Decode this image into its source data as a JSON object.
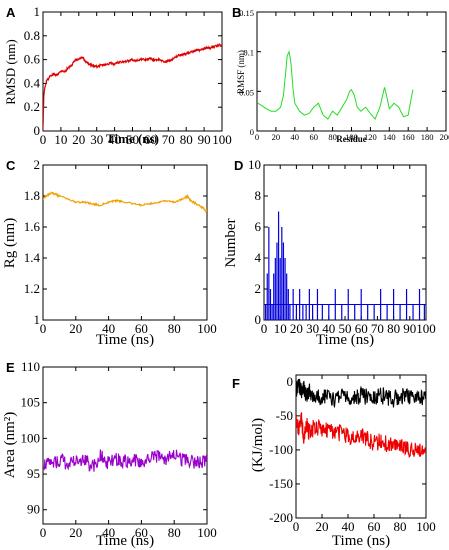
{
  "chart_data": [
    {
      "id": "A",
      "panel_label": "A",
      "type": "line",
      "xlabel": "Time (ns)",
      "ylabel": "RMSD (nm)",
      "xlim": [
        0,
        100
      ],
      "ylim": [
        0,
        1
      ],
      "xticks": [
        "0",
        "10",
        "20",
        "30",
        "40",
        "50",
        "60",
        "70",
        "80",
        "90",
        "100"
      ],
      "yticks": [
        "0",
        "0.2",
        "0.4",
        "0.6",
        "0.8",
        "1"
      ],
      "series": [
        {
          "color": "#e00000",
          "x": [
            0,
            0.5,
            1,
            2,
            4,
            6,
            8,
            10,
            12,
            14,
            16,
            18,
            20,
            22,
            24,
            26,
            28,
            30,
            32,
            35,
            38,
            40,
            42,
            45,
            48,
            50,
            52,
            55,
            58,
            60,
            62,
            65,
            68,
            70,
            72,
            74,
            76,
            78,
            80,
            82,
            84,
            86,
            88,
            90,
            92,
            94,
            96,
            98,
            100
          ],
          "y": [
            0.0,
            0.3,
            0.36,
            0.42,
            0.46,
            0.48,
            0.47,
            0.5,
            0.5,
            0.53,
            0.55,
            0.6,
            0.6,
            0.62,
            0.58,
            0.56,
            0.55,
            0.54,
            0.55,
            0.56,
            0.57,
            0.56,
            0.58,
            0.58,
            0.59,
            0.6,
            0.59,
            0.6,
            0.6,
            0.61,
            0.6,
            0.6,
            0.58,
            0.59,
            0.6,
            0.62,
            0.64,
            0.64,
            0.65,
            0.66,
            0.67,
            0.68,
            0.68,
            0.69,
            0.7,
            0.7,
            0.71,
            0.72,
            0.72
          ]
        }
      ]
    },
    {
      "id": "B",
      "panel_label": "B",
      "type": "line",
      "xlabel": "Residue",
      "ylabel": "RMSF (nm)",
      "xlim": [
        0,
        200
      ],
      "ylim": [
        0,
        0.15
      ],
      "xticks": [
        "0",
        "20",
        "40",
        "60",
        "80",
        "100",
        "120",
        "140",
        "160",
        "180",
        "200"
      ],
      "yticks": [
        "0",
        "0.05",
        "0.1",
        "0.15"
      ],
      "series": [
        {
          "color": "#22dd22",
          "x": [
            1,
            5,
            10,
            15,
            20,
            25,
            28,
            30,
            32,
            34,
            36,
            38,
            40,
            45,
            50,
            55,
            60,
            65,
            70,
            75,
            80,
            85,
            90,
            95,
            98,
            100,
            103,
            106,
            110,
            115,
            120,
            125,
            130,
            133,
            135,
            138,
            140,
            145,
            150,
            155,
            160,
            163,
            165
          ],
          "y": [
            0.035,
            0.032,
            0.028,
            0.025,
            0.025,
            0.03,
            0.045,
            0.07,
            0.095,
            0.1,
            0.085,
            0.055,
            0.035,
            0.025,
            0.02,
            0.022,
            0.03,
            0.035,
            0.02,
            0.015,
            0.025,
            0.02,
            0.03,
            0.04,
            0.05,
            0.052,
            0.045,
            0.03,
            0.025,
            0.03,
            0.022,
            0.015,
            0.03,
            0.045,
            0.055,
            0.04,
            0.028,
            0.035,
            0.03,
            0.018,
            0.02,
            0.04,
            0.052
          ]
        }
      ]
    },
    {
      "id": "C",
      "panel_label": "C",
      "type": "line",
      "xlabel": "Time (ns)",
      "ylabel": "Rg (nm)",
      "xlim": [
        0,
        100
      ],
      "ylim": [
        1,
        2
      ],
      "xticks": [
        "0",
        "20",
        "40",
        "60",
        "80",
        "100"
      ],
      "yticks": [
        "1",
        "1.2",
        "1.4",
        "1.6",
        "1.8",
        "2"
      ],
      "series": [
        {
          "color": "#f0a000",
          "x": [
            0,
            2,
            5,
            8,
            10,
            15,
            20,
            25,
            30,
            35,
            40,
            45,
            50,
            55,
            60,
            65,
            70,
            75,
            80,
            85,
            88,
            90,
            95,
            98,
            100
          ],
          "y": [
            1.78,
            1.8,
            1.82,
            1.81,
            1.8,
            1.78,
            1.76,
            1.76,
            1.75,
            1.74,
            1.76,
            1.77,
            1.76,
            1.75,
            1.74,
            1.75,
            1.76,
            1.77,
            1.76,
            1.78,
            1.8,
            1.77,
            1.74,
            1.72,
            1.7
          ]
        }
      ]
    },
    {
      "id": "D",
      "panel_label": "D",
      "type": "bar",
      "xlabel": "Time (ns)",
      "ylabel": "Number",
      "xlim": [
        0,
        100
      ],
      "ylim": [
        0,
        10
      ],
      "xticks": [
        "0",
        "10",
        "20",
        "30",
        "40",
        "50",
        "60",
        "70",
        "80",
        "90",
        "100"
      ],
      "yticks": [
        "0",
        "2",
        "4",
        "6",
        "8",
        "10"
      ],
      "series": [
        {
          "color": "#0000dd",
          "x": [
            1,
            2,
            3,
            4,
            5,
            6,
            7,
            8,
            9,
            10,
            11,
            12,
            13,
            14,
            15,
            16,
            18,
            20,
            22,
            24,
            26,
            28,
            30,
            33,
            36,
            40,
            44,
            48,
            52,
            56,
            60,
            64,
            68,
            72,
            76,
            80,
            84,
            88,
            92,
            96,
            99
          ],
          "y": [
            1,
            3,
            6,
            2,
            1,
            3,
            4,
            5,
            7,
            4,
            6,
            5,
            4,
            3,
            2,
            1,
            2,
            1,
            2,
            1,
            1,
            2,
            1,
            2,
            1,
            1,
            2,
            1,
            2,
            1,
            2,
            1,
            1,
            2,
            1,
            2,
            1,
            2,
            1,
            2,
            1
          ]
        }
      ]
    },
    {
      "id": "E",
      "panel_label": "E",
      "type": "line",
      "xlabel": "Time (ns)",
      "ylabel": "Area (nm²)",
      "xlim": [
        0,
        100
      ],
      "ylim": [
        88,
        110
      ],
      "xticks": [
        "0",
        "20",
        "40",
        "60",
        "80",
        "100"
      ],
      "yticks": [
        "90",
        "95",
        "100",
        "105",
        "110"
      ],
      "series": [
        {
          "color": "#9900cc",
          "x": [
            0,
            5,
            10,
            15,
            20,
            25,
            30,
            35,
            40,
            45,
            50,
            55,
            60,
            65,
            70,
            75,
            80,
            85,
            90,
            95,
            100
          ],
          "y": [
            96.5,
            96.2,
            97.0,
            96.5,
            96.8,
            97.2,
            96.0,
            97.5,
            96.5,
            97.0,
            96.8,
            97.2,
            96.5,
            97.0,
            97.5,
            97.2,
            98.0,
            97.0,
            96.8,
            96.5,
            96.8
          ]
        }
      ]
    },
    {
      "id": "F",
      "panel_label": "F",
      "type": "line",
      "xlabel": "Time (ns)",
      "ylabel": "(KJ/mol)",
      "xlim": [
        0,
        100
      ],
      "ylim": [
        -200,
        10
      ],
      "xticks": [
        "0",
        "20",
        "40",
        "60",
        "80",
        "100"
      ],
      "yticks": [
        "0",
        "-50",
        "-100",
        "-150",
        "-200"
      ],
      "series": [
        {
          "color": "#000000",
          "x": [
            0,
            2,
            4,
            6,
            8,
            10,
            15,
            20,
            25,
            30,
            35,
            40,
            45,
            50,
            55,
            60,
            65,
            70,
            75,
            80,
            85,
            90,
            95,
            100
          ],
          "y": [
            -10,
            -5,
            -15,
            -10,
            -20,
            -12,
            -25,
            -20,
            -22,
            -25,
            -20,
            -22,
            -25,
            -20,
            -22,
            -24,
            -20,
            -22,
            -25,
            -20,
            -22,
            -24,
            -22,
            -23
          ]
        },
        {
          "color": "#ee0000",
          "x": [
            0,
            2,
            4,
            6,
            8,
            10,
            15,
            20,
            25,
            30,
            35,
            40,
            45,
            50,
            55,
            60,
            65,
            70,
            75,
            80,
            85,
            90,
            95,
            100
          ],
          "y": [
            -60,
            -70,
            -55,
            -80,
            -60,
            -75,
            -65,
            -70,
            -72,
            -78,
            -75,
            -80,
            -82,
            -80,
            -85,
            -90,
            -88,
            -92,
            -95,
            -95,
            -98,
            -100,
            -98,
            -100
          ]
        }
      ]
    }
  ]
}
